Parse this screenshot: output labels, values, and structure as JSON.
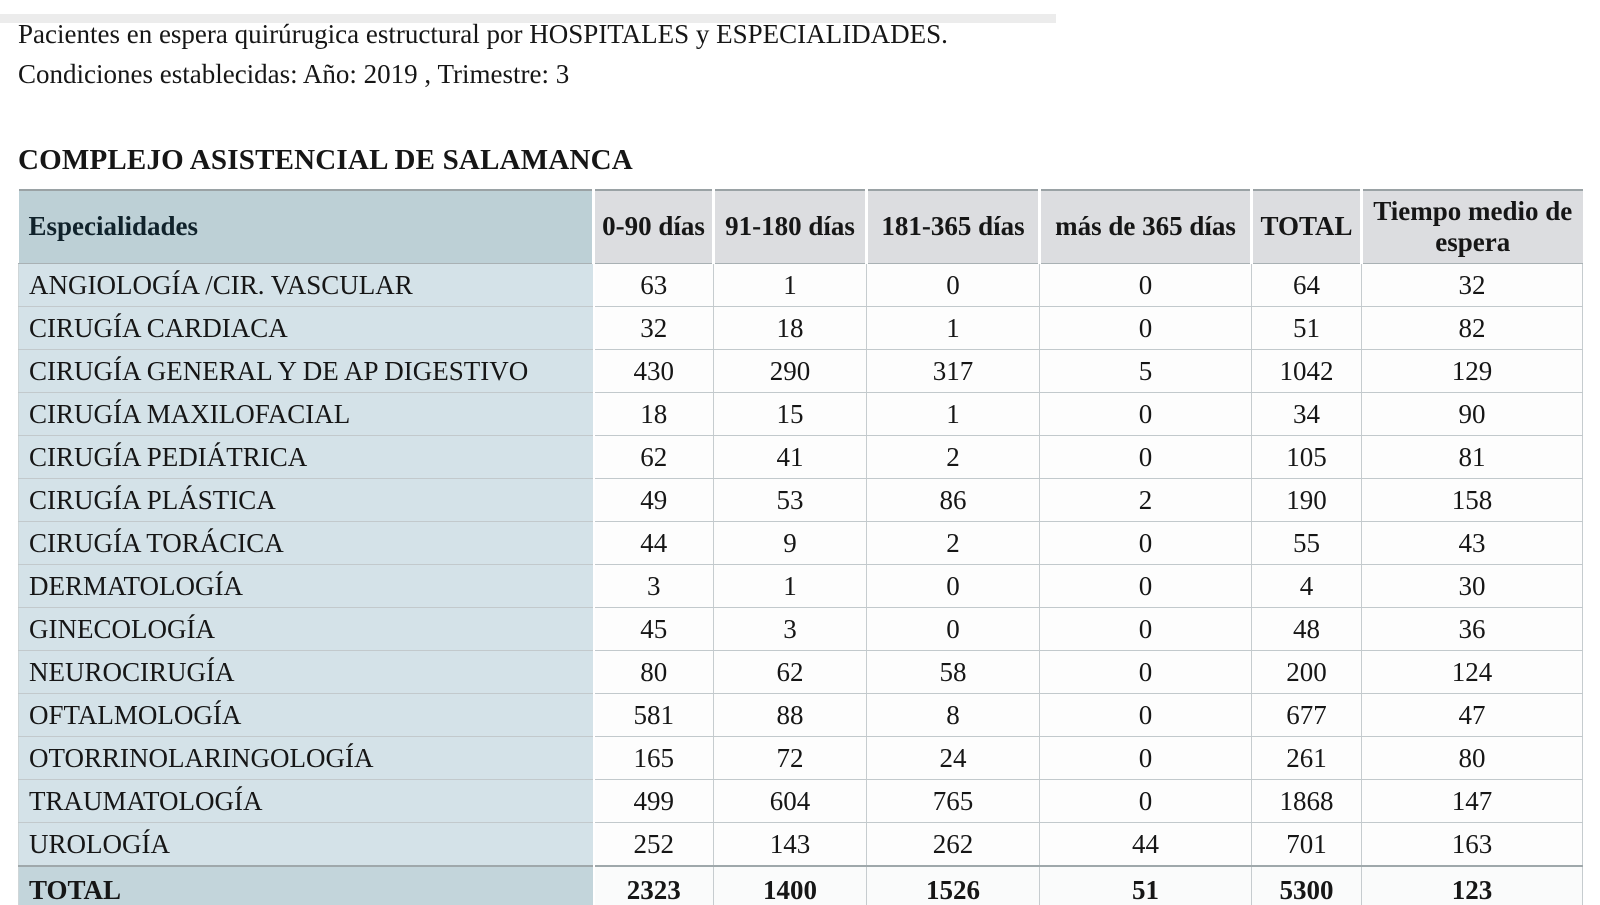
{
  "page": {
    "intro_line1": "Pacientes en espera quirúrugica estructural por HOSPITALES y ESPECIALIDADES.",
    "intro_line2": "Condiciones establecidas: Año: 2019 , Trimestre: 3",
    "hospital_title": "COMPLEJO ASISTENCIAL DE SALAMANCA"
  },
  "colors": {
    "header_label_bg": "#bdd0d6",
    "header_numeric_bg": "#dcdde0",
    "row_label_bg": "#d4e2e8",
    "total_label_bg": "#c3d5db",
    "cell_bg": "#fdfdfd",
    "grid_line": "#c2c9cc"
  },
  "table": {
    "columns": [
      "Especialidades",
      "0-90 días",
      "91-180 días",
      "181-365 días",
      "más de 365 días",
      "TOTAL",
      "Tiempo medio de espera"
    ],
    "rows": [
      {
        "name": "ANGIOLOGÍA /CIR. VASCULAR",
        "values": [
          63,
          1,
          0,
          0,
          64,
          32
        ]
      },
      {
        "name": "CIRUGÍA CARDIACA",
        "values": [
          32,
          18,
          1,
          0,
          51,
          82
        ]
      },
      {
        "name": "CIRUGÍA GENERAL Y DE AP DIGESTIVO",
        "values": [
          430,
          290,
          317,
          5,
          1042,
          129
        ]
      },
      {
        "name": "CIRUGÍA MAXILOFACIAL",
        "values": [
          18,
          15,
          1,
          0,
          34,
          90
        ]
      },
      {
        "name": "CIRUGÍA PEDIÁTRICA",
        "values": [
          62,
          41,
          2,
          0,
          105,
          81
        ]
      },
      {
        "name": "CIRUGÍA PLÁSTICA",
        "values": [
          49,
          53,
          86,
          2,
          190,
          158
        ]
      },
      {
        "name": "CIRUGÍA TORÁCICA",
        "values": [
          44,
          9,
          2,
          0,
          55,
          43
        ]
      },
      {
        "name": "DERMATOLOGÍA",
        "values": [
          3,
          1,
          0,
          0,
          4,
          30
        ]
      },
      {
        "name": "GINECOLOGÍA",
        "values": [
          45,
          3,
          0,
          0,
          48,
          36
        ]
      },
      {
        "name": "NEUROCIRUGÍA",
        "values": [
          80,
          62,
          58,
          0,
          200,
          124
        ]
      },
      {
        "name": "OFTALMOLOGÍA",
        "values": [
          581,
          88,
          8,
          0,
          677,
          47
        ]
      },
      {
        "name": "OTORRINOLARINGOLOGÍA",
        "values": [
          165,
          72,
          24,
          0,
          261,
          80
        ]
      },
      {
        "name": "TRAUMATOLOGÍA",
        "values": [
          499,
          604,
          765,
          0,
          1868,
          147
        ]
      },
      {
        "name": "UROLOGÍA",
        "values": [
          252,
          143,
          262,
          44,
          701,
          163
        ]
      }
    ],
    "total_row": {
      "name": "TOTAL",
      "values": [
        2323,
        1400,
        1526,
        51,
        5300,
        123
      ]
    }
  }
}
